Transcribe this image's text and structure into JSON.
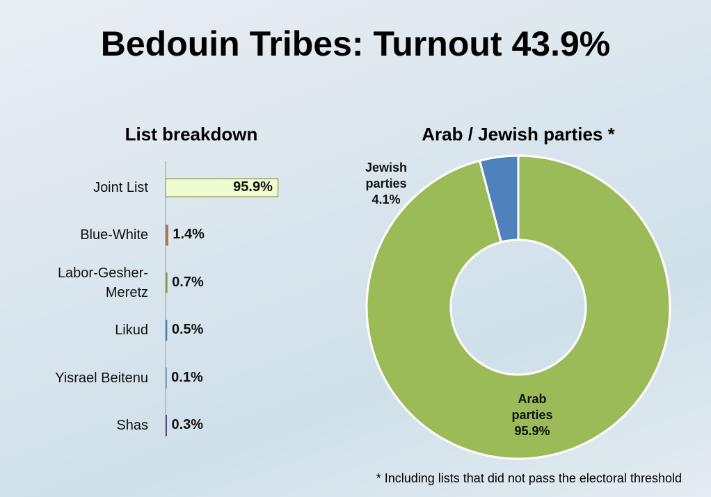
{
  "title": "Bedouin Tribes: Turnout 43.9%",
  "footnote": "* Including lists that did not pass the electoral threshold",
  "chart_data": [
    {
      "type": "bar",
      "orientation": "horizontal",
      "title": "List breakdown",
      "categories": [
        "Joint List",
        "Blue-White",
        "Labor-Gesher-Meretz",
        "Likud",
        "Yisrael Beitenu",
        "Shas"
      ],
      "values": [
        95.9,
        1.4,
        0.7,
        0.5,
        0.1,
        0.3
      ],
      "value_labels": [
        "95.9%",
        "1.4%",
        "0.7%",
        "0.5%",
        "0.1%",
        "0.3%"
      ],
      "colors": [
        "#f0fcd0",
        "#b2704a",
        "#7f9a55",
        "#4f7fae",
        "#8aa0b8",
        "#5e4c82"
      ],
      "xlim": [
        0,
        100
      ]
    },
    {
      "type": "donut",
      "title": "Arab / Jewish parties *",
      "categories": [
        "Jewish parties",
        "Arab parties"
      ],
      "values": [
        4.1,
        95.9
      ],
      "value_labels": [
        "4.1%",
        "95.9%"
      ],
      "colors": [
        "#4f81bd",
        "#9bbb59"
      ]
    }
  ]
}
